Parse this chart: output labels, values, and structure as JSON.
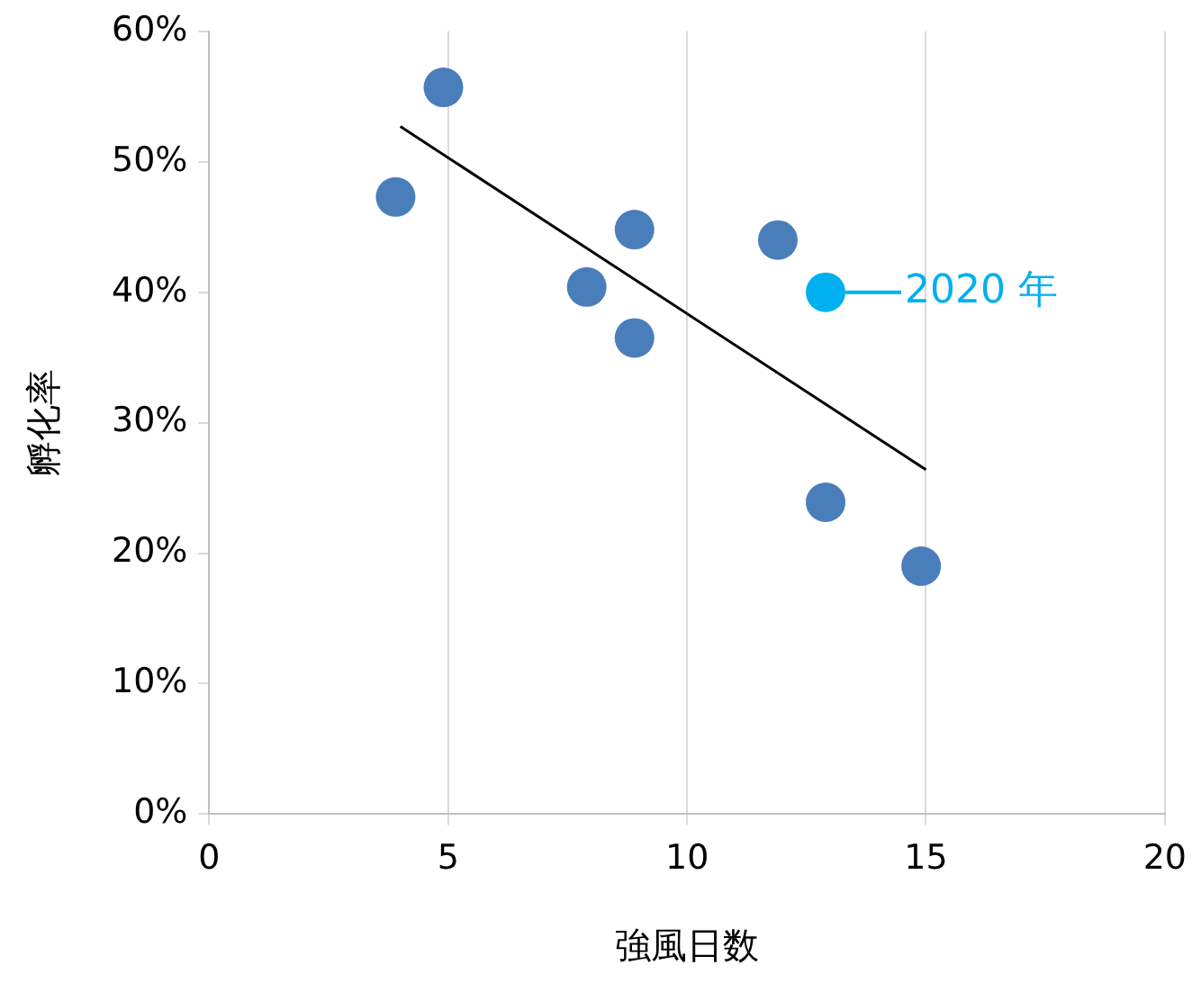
{
  "chart_data": {
    "type": "scatter",
    "xlabel": "強風日数",
    "ylabel": "孵化率",
    "xlim": [
      0,
      20
    ],
    "xticks": [
      0,
      5,
      10,
      15,
      20
    ],
    "ylim": [
      0,
      60
    ],
    "yticks": [
      {
        "value": 0,
        "label": "0%"
      },
      {
        "value": 10,
        "label": "10%"
      },
      {
        "value": 20,
        "label": "20%"
      },
      {
        "value": 30,
        "label": "30%"
      },
      {
        "value": 40,
        "label": "40%"
      },
      {
        "value": 50,
        "label": "50%"
      },
      {
        "value": 60,
        "label": "60%"
      }
    ],
    "grid": "x",
    "legend": false,
    "marker": "circle",
    "series": [
      {
        "color": "#4a7ebb",
        "x": [
          3.9,
          4.9,
          7.9,
          8.9,
          8.9,
          11.9,
          12.9,
          14.9
        ],
        "values": [
          47.3,
          55.7,
          40.4,
          44.8,
          36.5,
          44.0,
          23.9,
          19.0
        ]
      },
      {
        "color": "#00b0f0",
        "x": [
          12.9
        ],
        "values": [
          40.0
        ]
      },
      {
        "type": "line",
        "color": "#000000",
        "marker": "none",
        "x": [
          4,
          15
        ],
        "values": [
          52.7,
          26.4
        ]
      }
    ],
    "annotations": [
      {
        "text": "2020 年",
        "x": 12.9,
        "y": 40.0
      }
    ]
  }
}
